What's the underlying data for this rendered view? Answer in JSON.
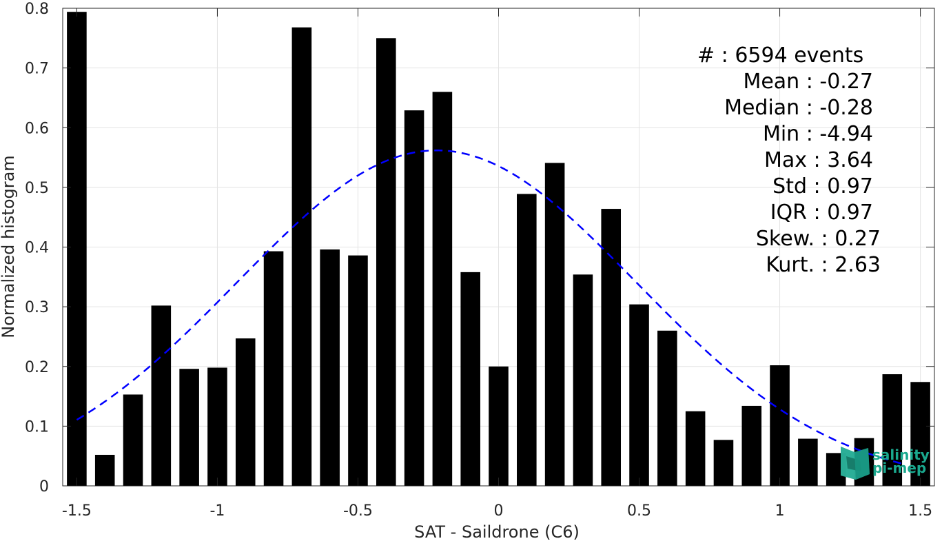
{
  "chart_data": {
    "type": "bar",
    "title": "",
    "xlabel": "SAT - Saildrone (C6)",
    "ylabel": "Normalized histogram",
    "xlim": [
      -1.55,
      1.55
    ],
    "ylim": [
      0,
      0.8
    ],
    "grid": true,
    "x_ticks": [
      -1.5,
      -1,
      -0.5,
      0,
      0.5,
      1,
      1.5
    ],
    "x_tick_labels": [
      "-1.5",
      "-1",
      "-0.5",
      "0",
      "0.5",
      "1",
      "1.5"
    ],
    "y_ticks": [
      0,
      0.1,
      0.2,
      0.3,
      0.4,
      0.5,
      0.6,
      0.7,
      0.8
    ],
    "y_tick_labels": [
      "0",
      "0.1",
      "0.2",
      "0.3",
      "0.4",
      "0.5",
      "0.6",
      "0.7",
      "0.8"
    ],
    "bar_width": 0.07,
    "bar_color": "#000000",
    "bins": [
      -1.5,
      -1.4,
      -1.3,
      -1.2,
      -1.1,
      -1.0,
      -0.9,
      -0.8,
      -0.7,
      -0.6,
      -0.5,
      -0.4,
      -0.3,
      -0.2,
      -0.1,
      0.0,
      0.1,
      0.2,
      0.3,
      0.4,
      0.5,
      0.6,
      0.7,
      0.8,
      0.9,
      1.0,
      1.1,
      1.2,
      1.3,
      1.4,
      1.5
    ],
    "values": [
      0.794,
      0.052,
      0.153,
      0.302,
      0.196,
      0.198,
      0.247,
      0.393,
      0.768,
      0.396,
      0.386,
      0.75,
      0.629,
      0.66,
      0.358,
      0.2,
      0.489,
      0.541,
      0.354,
      0.464,
      0.304,
      0.26,
      0.125,
      0.077,
      0.134,
      0.202,
      0.079,
      0.055,
      0.08,
      0.187,
      0.174
    ],
    "fit": {
      "type": "gaussian",
      "mean": -0.22,
      "std": 0.71,
      "peak": 0.562,
      "x_range": [
        -1.5,
        1.45
      ],
      "color": "#0000ff",
      "style": "dashed"
    },
    "stats": [
      {
        "label": "#  : 6594 events"
      },
      {
        "label": "Mean : -0.27"
      },
      {
        "label": "Median : -0.28"
      },
      {
        "label": "Min : -4.94"
      },
      {
        "label": "Max : 3.64"
      },
      {
        "label": "Std : 0.97"
      },
      {
        "label": "IQR : 0.97"
      },
      {
        "label": "Skew. : 0.27"
      },
      {
        "label": "Kurt. : 2.63"
      }
    ]
  },
  "logo": {
    "line1": "salinity",
    "line2": "pi-mep",
    "color": "#1aa88e"
  }
}
